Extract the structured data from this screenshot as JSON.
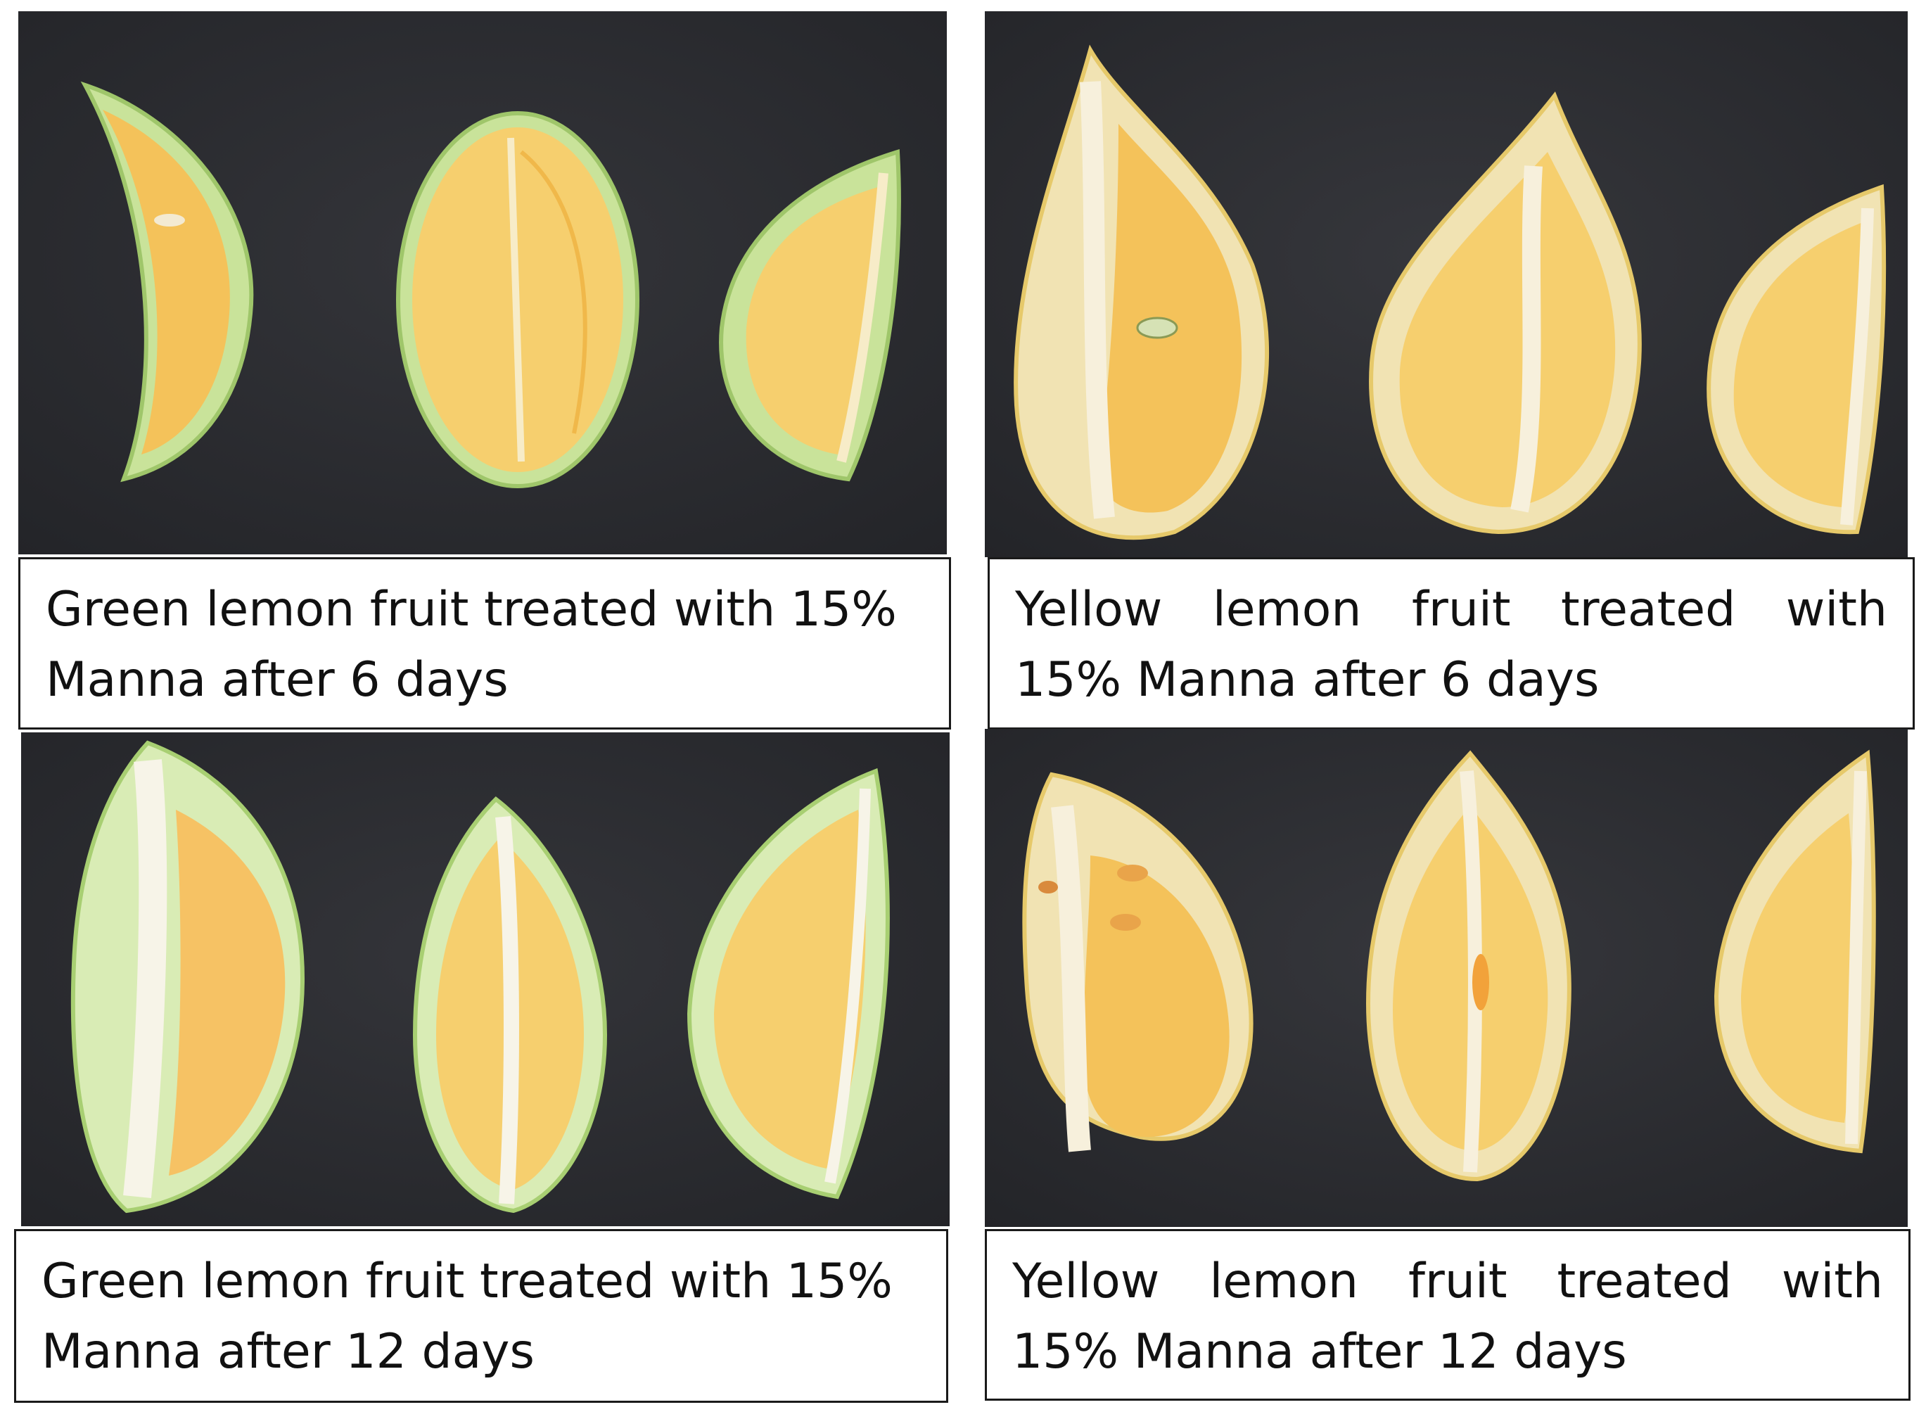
{
  "panels": [
    {
      "caption_line1": "Green lemon fruit treated with 15%",
      "caption_line2": "Manna after 6 days",
      "rind_color": "#b9d98a"
    },
    {
      "caption_line1": "Yellow lemon fruit treated with",
      "caption_line2": "15% Manna after 6 days",
      "rind_color": "#e8d27a"
    },
    {
      "caption_line1": "Green lemon fruit treated with 15%",
      "caption_line2": "Manna after 12 days",
      "rind_color": "#b9d98a"
    },
    {
      "caption_line1": "Yellow lemon fruit treated with",
      "caption_line2": "15% Manna after 12 days",
      "rind_color": "#e8d27a"
    }
  ],
  "colors": {
    "background_surface": "#2a2b2f",
    "pulp": "#f4c25a",
    "pith": "#f5f1e2"
  }
}
